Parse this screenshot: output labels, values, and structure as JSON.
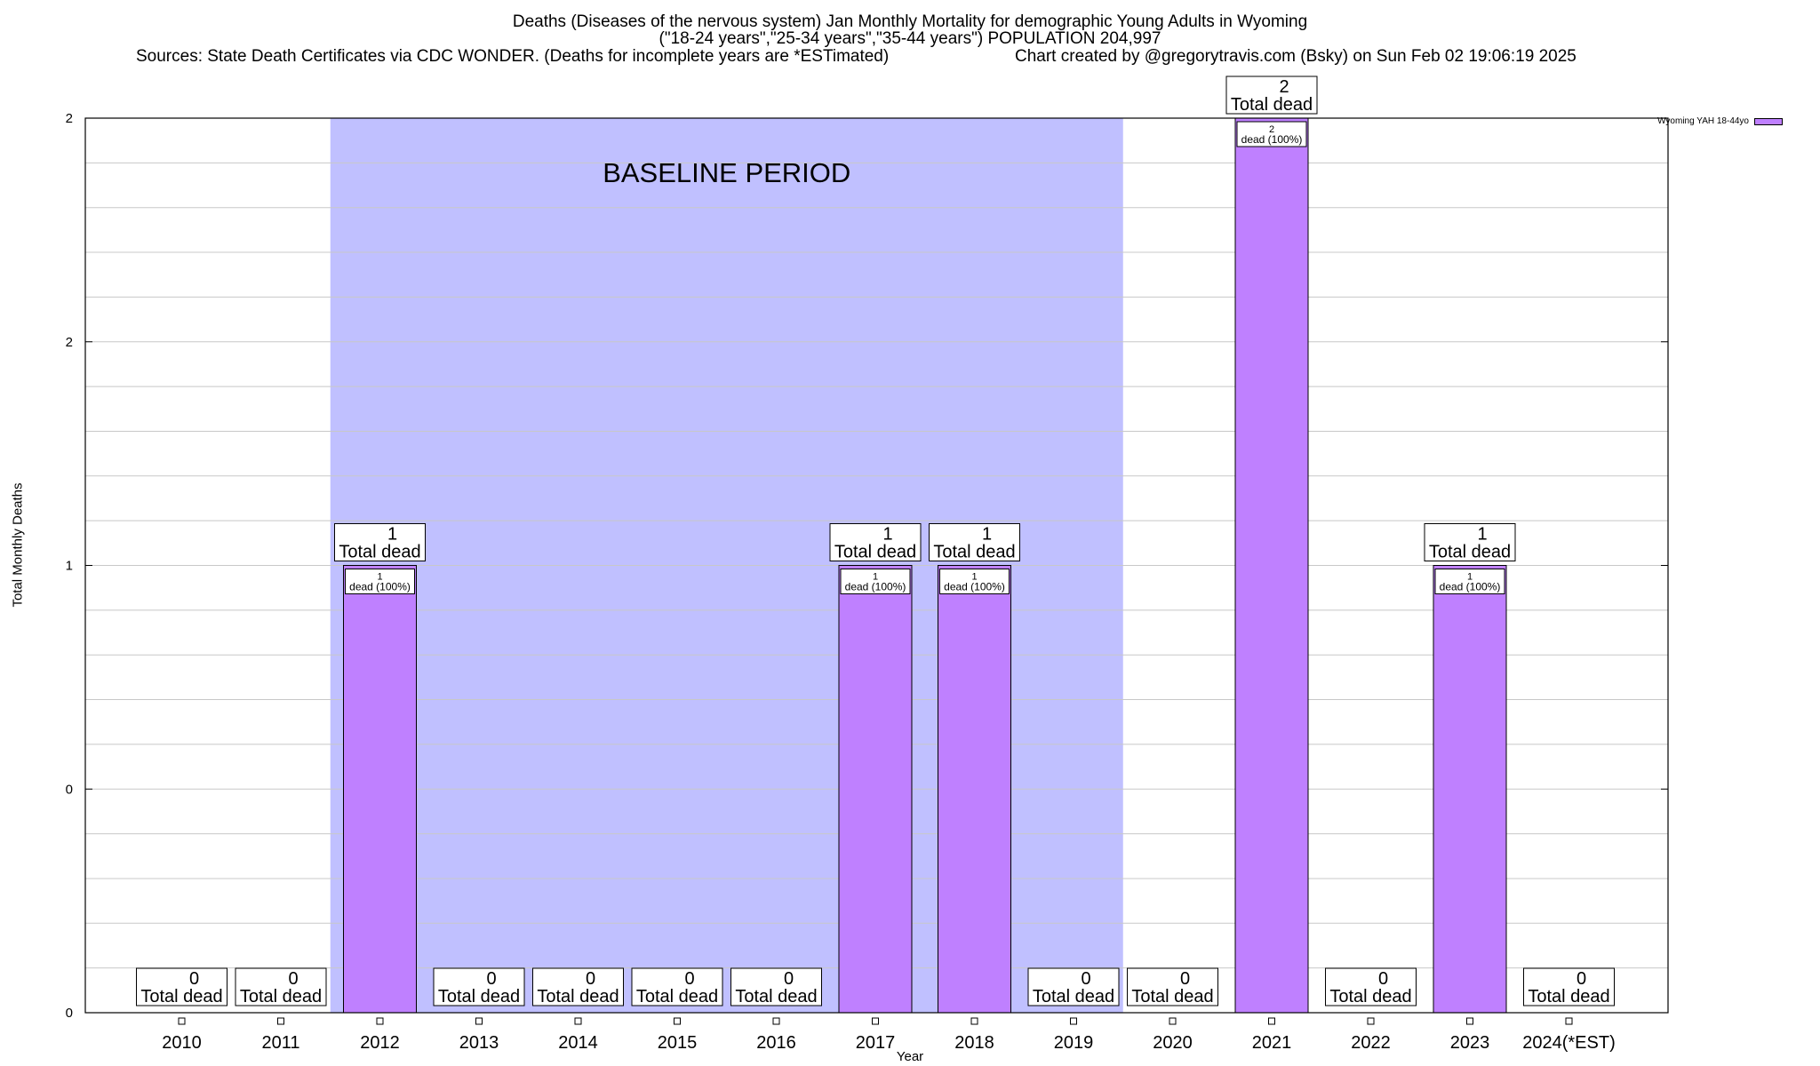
{
  "header": {
    "title_line1": "Deaths (Diseases of the nervous system) Jan Monthly Mortality for demographic Young Adults in Wyoming",
    "title_line2": "(\"18-24 years\",\"25-34 years\",\"35-44 years\") POPULATION 204,997",
    "sources": "Sources: State Death Certificates via CDC WONDER. (Deaths for incomplete years are *ESTimated)",
    "credit": "Chart created by @gregorytravis.com (Bsky) on Sun Feb 02 19:06:19 2025"
  },
  "colors": {
    "bar": "#bf80ff",
    "baseline": "#c0c0ff",
    "grid": "#c8c8c8"
  },
  "chart_data": {
    "type": "bar",
    "xlabel": "Year",
    "ylabel": "Total Monthly Deaths",
    "ylim": [
      0,
      2
    ],
    "y_tick_labels": [
      "0",
      "0",
      "1",
      "2",
      "2"
    ],
    "categories": [
      "2010",
      "2011",
      "2012",
      "2013",
      "2014",
      "2015",
      "2016",
      "2017",
      "2018",
      "2019",
      "2020",
      "2021",
      "2022",
      "2023",
      "2024(*EST)"
    ],
    "series": [
      {
        "name": "Wyoming YAH 18-44yo",
        "values": [
          0,
          0,
          1,
          0,
          0,
          0,
          0,
          1,
          1,
          0,
          0,
          2,
          0,
          1,
          0
        ]
      }
    ],
    "total_labels": [
      "0",
      "0",
      "1",
      "0",
      "0",
      "0",
      "0",
      "1",
      "1",
      "0",
      "0",
      "2",
      "0",
      "1",
      "0"
    ],
    "total_suffix": "Total dead",
    "inner_labels": [
      "",
      "",
      "1",
      "",
      "",
      "",
      "",
      "1",
      "1",
      "",
      "",
      "2",
      "",
      "1",
      ""
    ],
    "inner_suffix": "dead (100%)",
    "baseline_period": {
      "label": "BASELINE PERIOD",
      "from": "2012",
      "to": "2019"
    },
    "legend_position": "top-right",
    "grid": true
  }
}
